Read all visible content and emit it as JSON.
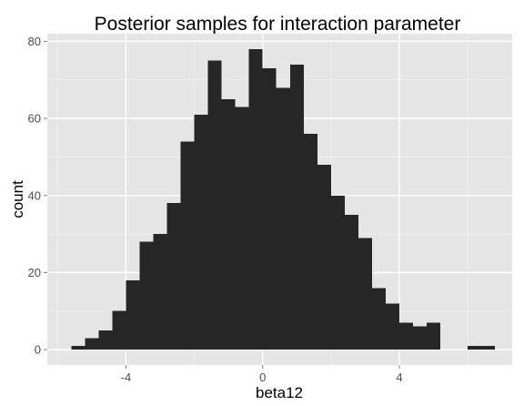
{
  "chart_data": {
    "type": "bar",
    "title": "Posterior samples for interaction parameter",
    "xlabel": "beta12",
    "ylabel": "count",
    "xlim": [
      -6.3,
      7.3
    ],
    "ylim": [
      -4,
      82
    ],
    "x_ticks": [
      -4,
      0,
      4
    ],
    "y_ticks": [
      0,
      20,
      40,
      60,
      80
    ],
    "grid": true,
    "bin_width": 0.4,
    "bin_left_edges": [
      -5.6,
      -5.2,
      -4.8,
      -4.4,
      -4.0,
      -3.6,
      -3.2,
      -2.8,
      -2.4,
      -2.0,
      -1.6,
      -1.2,
      -0.8,
      -0.4,
      0.0,
      0.4,
      0.8,
      1.2,
      1.6,
      2.0,
      2.4,
      2.8,
      3.2,
      3.6,
      4.0,
      4.4,
      4.8,
      5.2,
      5.6,
      6.0,
      6.4
    ],
    "values": [
      1,
      3,
      5,
      10,
      18,
      28,
      30,
      38,
      54,
      61,
      75,
      65,
      63,
      78,
      73,
      68,
      74,
      56,
      48,
      40,
      35,
      29,
      16,
      12,
      7,
      6,
      7,
      0,
      0,
      1,
      1
    ],
    "colors": {
      "panel": "#e5e5e5",
      "grid_major": "#ffffff",
      "grid_minor": "#f2f2f2",
      "bar": "#262626"
    }
  }
}
